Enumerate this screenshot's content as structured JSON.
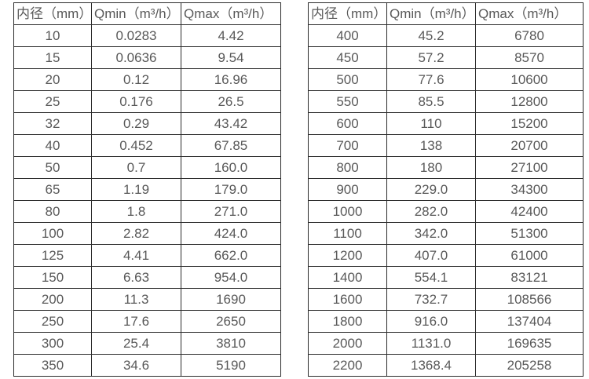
{
  "colors": {
    "border": "#2b2b2b",
    "text": "#595959",
    "background": "#ffffff"
  },
  "chart_data": [
    {
      "type": "table",
      "title": "",
      "columns": [
        "内径（mm）",
        "Qmin（m³/h）",
        "Qmax（m³/h）"
      ],
      "rows": [
        [
          "10",
          "0.0283",
          "4.42"
        ],
        [
          "15",
          "0.0636",
          "9.54"
        ],
        [
          "20",
          "0.12",
          "16.96"
        ],
        [
          "25",
          "0.176",
          "26.5"
        ],
        [
          "32",
          "0.29",
          "43.42"
        ],
        [
          "40",
          "0.452",
          "67.85"
        ],
        [
          "50",
          "0.7",
          "160.0"
        ],
        [
          "65",
          "1.19",
          "179.0"
        ],
        [
          "80",
          "1.8",
          "271.0"
        ],
        [
          "100",
          "2.82",
          "424.0"
        ],
        [
          "125",
          "4.41",
          "662.0"
        ],
        [
          "150",
          "6.63",
          "954.0"
        ],
        [
          "200",
          "11.3",
          "1690"
        ],
        [
          "250",
          "17.6",
          "2650"
        ],
        [
          "300",
          "25.4",
          "3810"
        ],
        [
          "350",
          "34.6",
          "5190"
        ]
      ]
    },
    {
      "type": "table",
      "title": "",
      "columns": [
        "内径（mm）",
        "Qmin（m³/h）",
        "Qmax（m³/h）"
      ],
      "rows": [
        [
          "400",
          "45.2",
          "6780"
        ],
        [
          "450",
          "57.2",
          "8570"
        ],
        [
          "500",
          "77.6",
          "10600"
        ],
        [
          "550",
          "85.5",
          "12800"
        ],
        [
          "600",
          "110",
          "15200"
        ],
        [
          "700",
          "138",
          "20700"
        ],
        [
          "800",
          "180",
          "27100"
        ],
        [
          "900",
          "229.0",
          "34300"
        ],
        [
          "1000",
          "282.0",
          "42400"
        ],
        [
          "1100",
          "342.0",
          "51300"
        ],
        [
          "1200",
          "407.0",
          "61000"
        ],
        [
          "1400",
          "554.1",
          "83121"
        ],
        [
          "1600",
          "732.7",
          "108566"
        ],
        [
          "1800",
          "916.0",
          "137404"
        ],
        [
          "2000",
          "1131.0",
          "169635"
        ],
        [
          "2200",
          "1368.4",
          "205258"
        ]
      ]
    }
  ]
}
